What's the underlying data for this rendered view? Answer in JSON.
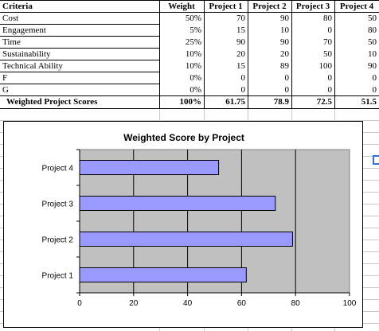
{
  "table": {
    "headers": [
      "Criteria",
      "Weight",
      "Project 1",
      "Project 2",
      "Project 3",
      "Project 4"
    ],
    "rows": [
      {
        "criteria": "Cost",
        "weight": "50%",
        "p1": "70",
        "p2": "90",
        "p3": "80",
        "p4": "50"
      },
      {
        "criteria": "Engagement",
        "weight": "5%",
        "p1": "15",
        "p2": "10",
        "p3": "0",
        "p4": "80"
      },
      {
        "criteria": "Time",
        "weight": "25%",
        "p1": "90",
        "p2": "90",
        "p3": "70",
        "p4": "50"
      },
      {
        "criteria": "Sustainability",
        "weight": "10%",
        "p1": "20",
        "p2": "20",
        "p3": "50",
        "p4": "10"
      },
      {
        "criteria": "Technical Ability",
        "weight": "10%",
        "p1": "15",
        "p2": "89",
        "p3": "100",
        "p4": "90"
      },
      {
        "criteria": "F",
        "weight": "0%",
        "p1": "0",
        "p2": "0",
        "p3": "0",
        "p4": "0"
      },
      {
        "criteria": "G",
        "weight": "0%",
        "p1": "0",
        "p2": "0",
        "p3": "0",
        "p4": "0"
      }
    ],
    "total": {
      "label": "Weighted Project Scores",
      "weight": "100%",
      "p1": "61.75",
      "p2": "78.9",
      "p3": "72.5",
      "p4": "51.5"
    }
  },
  "chart_data": {
    "type": "bar",
    "orientation": "horizontal",
    "title": "Weighted Score by Project",
    "categories": [
      "Project 1",
      "Project 2",
      "Project 3",
      "Project 4"
    ],
    "values": [
      61.75,
      78.9,
      72.5,
      51.5
    ],
    "xlim": [
      0,
      100
    ],
    "xticks": [
      "0",
      "20",
      "40",
      "60",
      "80",
      "100"
    ],
    "xlabel": "",
    "ylabel": "",
    "grid": "vertical",
    "legend": "none",
    "plot_background": "#c0c0c0",
    "bar_color": "#9999ff"
  }
}
